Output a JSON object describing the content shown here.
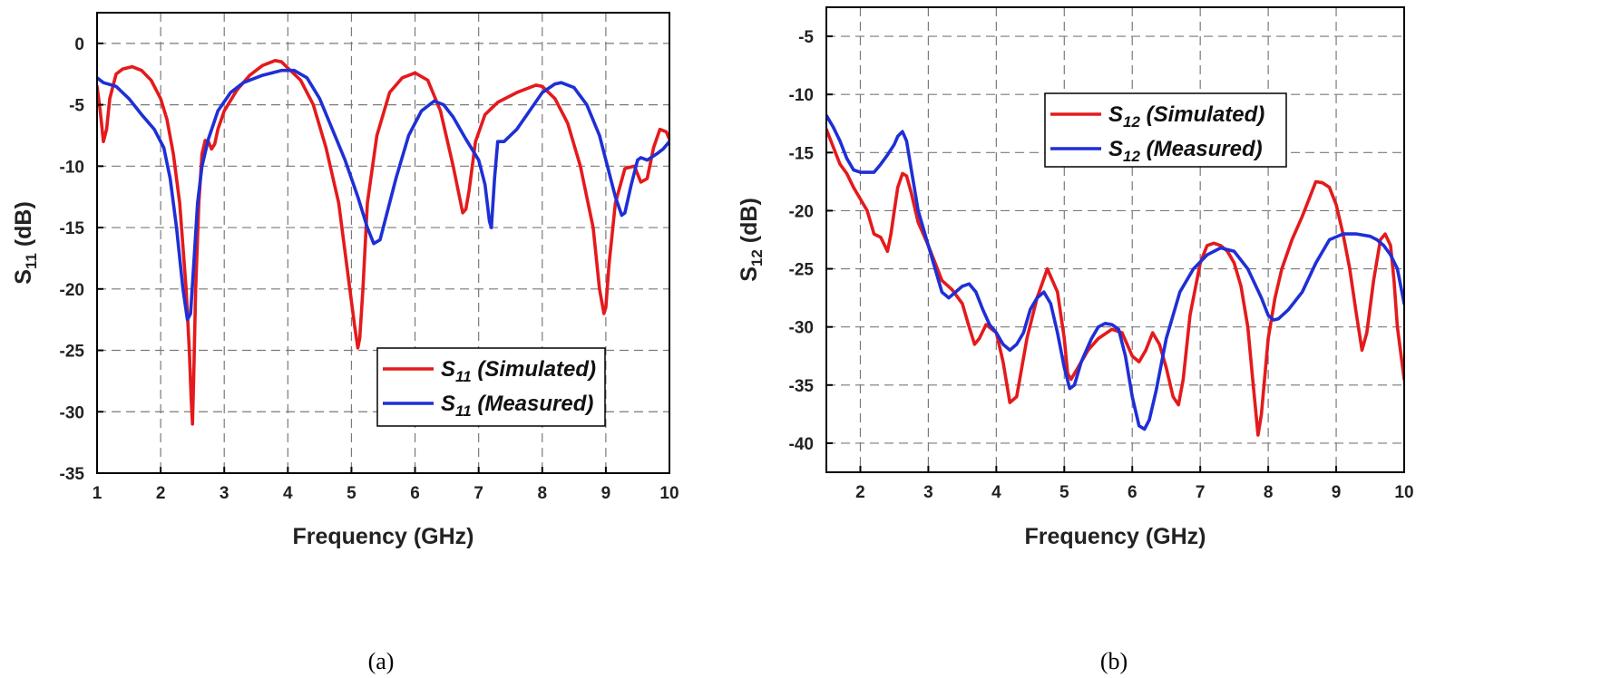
{
  "chart_data": [
    {
      "type": "line",
      "caption": "(a)",
      "xlabel": "Frequency (GHz)",
      "ylabel_main": "S",
      "ylabel_sub": "11",
      "ylabel_unit": " (dB)",
      "xlim": [
        1,
        10
      ],
      "ylim": [
        -35,
        2.5
      ],
      "xticks": [
        1,
        2,
        3,
        4,
        5,
        6,
        7,
        8,
        9,
        10
      ],
      "yticks": [
        0,
        -5,
        -10,
        -15,
        -20,
        -25,
        -30,
        -35
      ],
      "grid": true,
      "legend_position": "bottom-right",
      "series": [
        {
          "legend_main": "S",
          "legend_sub": "11",
          "legend_rest": " (Simulated)",
          "color": "#e41a1c",
          "x": [
            1.0,
            1.05,
            1.1,
            1.15,
            1.2,
            1.3,
            1.4,
            1.55,
            1.7,
            1.85,
            2.0,
            2.1,
            2.2,
            2.3,
            2.4,
            2.45,
            2.48,
            2.5,
            2.52,
            2.55,
            2.6,
            2.65,
            2.7,
            2.75,
            2.8,
            2.85,
            2.9,
            3.0,
            3.2,
            3.4,
            3.6,
            3.8,
            3.9,
            4.0,
            4.2,
            4.4,
            4.6,
            4.8,
            4.95,
            5.05,
            5.1,
            5.13,
            5.18,
            5.25,
            5.4,
            5.6,
            5.8,
            6.0,
            6.2,
            6.4,
            6.6,
            6.75,
            6.8,
            6.85,
            6.95,
            7.1,
            7.3,
            7.6,
            7.9,
            8.0,
            8.2,
            8.4,
            8.6,
            8.8,
            8.9,
            8.97,
            9.0,
            9.05,
            9.15,
            9.3,
            9.45,
            9.55,
            9.65,
            9.75,
            9.85,
            9.95,
            10.0
          ],
          "y": [
            -3.5,
            -5.5,
            -8.0,
            -7.0,
            -4.5,
            -2.5,
            -2.1,
            -1.9,
            -2.2,
            -3.0,
            -4.5,
            -6.2,
            -9.0,
            -13.0,
            -20.0,
            -25.0,
            -29.0,
            -31.0,
            -27.0,
            -20.0,
            -13.0,
            -9.0,
            -7.9,
            -8.0,
            -8.6,
            -8.2,
            -7.0,
            -5.5,
            -3.8,
            -2.6,
            -1.8,
            -1.4,
            -1.5,
            -2.0,
            -3.0,
            -5.0,
            -8.5,
            -13.0,
            -19.0,
            -23.0,
            -24.8,
            -24.0,
            -20.0,
            -13.0,
            -7.5,
            -4.0,
            -2.8,
            -2.4,
            -3.0,
            -5.5,
            -10.0,
            -13.8,
            -13.5,
            -12.0,
            -8.0,
            -5.8,
            -4.8,
            -4.0,
            -3.4,
            -3.5,
            -4.5,
            -6.5,
            -10.0,
            -15.0,
            -20.0,
            -22.0,
            -21.5,
            -18.0,
            -13.0,
            -10.2,
            -10.0,
            -11.3,
            -11.0,
            -8.5,
            -7.0,
            -7.2,
            -7.8
          ]
        },
        {
          "legend_main": "S",
          "legend_sub": "11",
          "legend_rest": " (Measured)",
          "color": "#1f2fd6",
          "x": [
            1.0,
            1.1,
            1.3,
            1.5,
            1.7,
            1.9,
            2.05,
            2.15,
            2.25,
            2.35,
            2.42,
            2.47,
            2.52,
            2.58,
            2.65,
            2.75,
            2.9,
            3.1,
            3.3,
            3.6,
            3.9,
            4.1,
            4.3,
            4.5,
            4.7,
            4.9,
            5.1,
            5.25,
            5.35,
            5.45,
            5.55,
            5.7,
            5.9,
            6.1,
            6.3,
            6.45,
            6.6,
            6.8,
            7.0,
            7.1,
            7.17,
            7.2,
            7.25,
            7.3,
            7.4,
            7.6,
            7.8,
            8.0,
            8.2,
            8.3,
            8.5,
            8.7,
            8.9,
            9.05,
            9.15,
            9.25,
            9.3,
            9.4,
            9.5,
            9.55,
            9.65,
            9.8,
            9.9,
            10.0
          ],
          "y": [
            -2.8,
            -3.2,
            -3.5,
            -4.5,
            -5.8,
            -7.0,
            -8.5,
            -11.0,
            -15.0,
            -20.0,
            -22.5,
            -22.0,
            -18.0,
            -13.0,
            -10.0,
            -7.8,
            -5.5,
            -4.0,
            -3.2,
            -2.6,
            -2.2,
            -2.2,
            -2.8,
            -4.5,
            -7.0,
            -9.5,
            -12.5,
            -15.0,
            -16.3,
            -16.0,
            -14.0,
            -11.0,
            -7.5,
            -5.5,
            -4.7,
            -5.0,
            -6.0,
            -7.8,
            -9.5,
            -11.5,
            -14.5,
            -15.0,
            -11.0,
            -8.0,
            -8.0,
            -7.0,
            -5.5,
            -4.0,
            -3.3,
            -3.2,
            -3.6,
            -5.0,
            -7.5,
            -10.5,
            -12.5,
            -14.0,
            -13.8,
            -11.5,
            -9.5,
            -9.3,
            -9.5,
            -9.0,
            -8.6,
            -8.0
          ]
        }
      ]
    },
    {
      "type": "line",
      "caption": "(b)",
      "xlabel": "Frequency (GHz)",
      "ylabel_main": "S",
      "ylabel_sub": "12",
      "ylabel_unit": " (dB)",
      "xlim": [
        1.5,
        10
      ],
      "ylim": [
        -42.5,
        -2.5
      ],
      "xticks": [
        2,
        3,
        4,
        5,
        6,
        7,
        8,
        9,
        10
      ],
      "yticks": [
        -5,
        -10,
        -15,
        -20,
        -25,
        -30,
        -35,
        -40
      ],
      "grid": true,
      "legend_position": "top-center",
      "series": [
        {
          "legend_main": "S",
          "legend_sub": "12",
          "legend_rest": " (Simulated)",
          "color": "#e41a1c",
          "x": [
            1.5,
            1.6,
            1.7,
            1.8,
            1.9,
            2.0,
            2.1,
            2.2,
            2.3,
            2.4,
            2.45,
            2.5,
            2.55,
            2.62,
            2.68,
            2.75,
            2.85,
            3.0,
            3.1,
            3.2,
            3.35,
            3.5,
            3.6,
            3.68,
            3.75,
            3.85,
            4.0,
            4.1,
            4.2,
            4.3,
            4.45,
            4.6,
            4.75,
            4.9,
            5.0,
            5.05,
            5.1,
            5.2,
            5.35,
            5.5,
            5.7,
            5.85,
            6.0,
            6.1,
            6.2,
            6.3,
            6.4,
            6.5,
            6.6,
            6.68,
            6.75,
            6.85,
            7.0,
            7.1,
            7.2,
            7.3,
            7.4,
            7.5,
            7.6,
            7.7,
            7.78,
            7.85,
            7.9,
            8.0,
            8.1,
            8.2,
            8.35,
            8.5,
            8.6,
            8.7,
            8.8,
            8.9,
            9.0,
            9.1,
            9.2,
            9.3,
            9.38,
            9.45,
            9.55,
            9.65,
            9.72,
            9.8,
            9.85,
            9.9,
            10.0
          ],
          "y": [
            -13.0,
            -14.5,
            -16.0,
            -16.8,
            -18.0,
            -19.0,
            -20.0,
            -22.0,
            -22.3,
            -23.5,
            -22.0,
            -20.0,
            -18.0,
            -16.8,
            -17.0,
            -18.5,
            -21.0,
            -23.0,
            -24.5,
            -26.0,
            -26.8,
            -28.0,
            -30.0,
            -31.5,
            -31.0,
            -29.8,
            -30.5,
            -33.0,
            -36.5,
            -36.0,
            -31.0,
            -27.5,
            -25.0,
            -27.0,
            -31.0,
            -34.0,
            -34.5,
            -33.5,
            -32.0,
            -31.0,
            -30.2,
            -30.5,
            -32.5,
            -33.0,
            -32.0,
            -30.5,
            -31.5,
            -33.5,
            -36.0,
            -36.7,
            -34.5,
            -29.0,
            -24.5,
            -23.0,
            -22.8,
            -23.0,
            -23.5,
            -24.5,
            -26.5,
            -30.0,
            -35.0,
            -39.3,
            -37.5,
            -31.0,
            -27.5,
            -25.0,
            -22.5,
            -20.5,
            -19.0,
            -17.5,
            -17.6,
            -18.0,
            -19.5,
            -22.0,
            -25.0,
            -29.0,
            -32.0,
            -30.5,
            -26.0,
            -22.5,
            -22.0,
            -23.0,
            -26.0,
            -30.0,
            -34.5
          ]
        },
        {
          "legend_main": "S",
          "legend_sub": "12",
          "legend_rest": " (Measured)",
          "color": "#1f2fd6",
          "x": [
            1.5,
            1.6,
            1.7,
            1.8,
            1.9,
            2.0,
            2.1,
            2.2,
            2.3,
            2.4,
            2.5,
            2.55,
            2.62,
            2.68,
            2.75,
            2.85,
            3.0,
            3.1,
            3.2,
            3.3,
            3.4,
            3.5,
            3.6,
            3.7,
            3.8,
            3.9,
            4.0,
            4.1,
            4.2,
            4.3,
            4.4,
            4.5,
            4.6,
            4.7,
            4.8,
            4.9,
            5.0,
            5.08,
            5.15,
            5.25,
            5.4,
            5.5,
            5.6,
            5.7,
            5.8,
            5.9,
            6.0,
            6.1,
            6.18,
            6.25,
            6.35,
            6.5,
            6.7,
            6.9,
            7.1,
            7.3,
            7.5,
            7.7,
            7.9,
            8.0,
            8.08,
            8.15,
            8.3,
            8.5,
            8.7,
            8.9,
            9.1,
            9.3,
            9.5,
            9.6,
            9.7,
            9.8,
            9.9,
            10.0
          ],
          "y": [
            -11.8,
            -12.8,
            -14.0,
            -15.5,
            -16.5,
            -16.7,
            -16.7,
            -16.7,
            -16.0,
            -15.2,
            -14.3,
            -13.6,
            -13.2,
            -14.0,
            -16.5,
            -20.0,
            -23.0,
            -25.0,
            -27.0,
            -27.5,
            -27.0,
            -26.5,
            -26.3,
            -27.0,
            -28.5,
            -29.8,
            -30.5,
            -31.5,
            -32.0,
            -31.5,
            -30.5,
            -28.5,
            -27.5,
            -27.0,
            -28.0,
            -30.5,
            -33.5,
            -35.3,
            -35.0,
            -33.0,
            -31.0,
            -30.0,
            -29.7,
            -29.8,
            -30.2,
            -32.5,
            -36.0,
            -38.5,
            -38.8,
            -38.0,
            -35.5,
            -31.0,
            -27.0,
            -25.0,
            -23.8,
            -23.2,
            -23.5,
            -25.0,
            -27.5,
            -29.0,
            -29.4,
            -29.3,
            -28.5,
            -27.0,
            -24.5,
            -22.5,
            -22.0,
            -22.0,
            -22.2,
            -22.5,
            -23.0,
            -23.8,
            -25.0,
            -28.0
          ]
        }
      ]
    }
  ]
}
